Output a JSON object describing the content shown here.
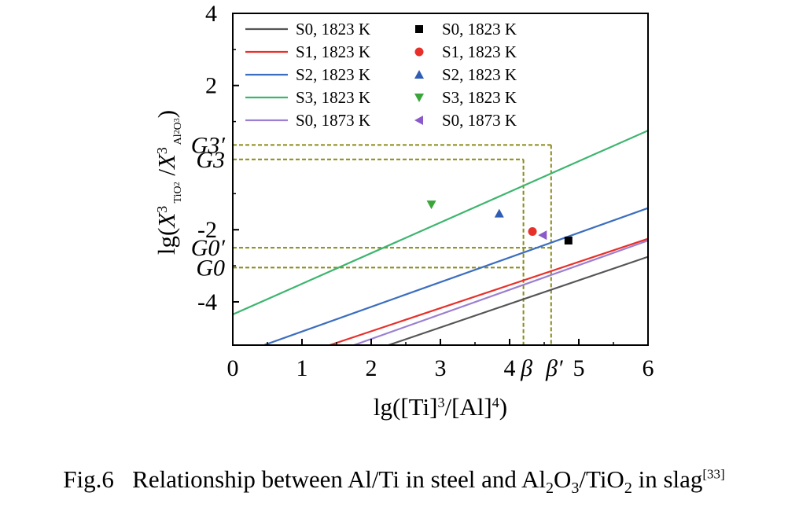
{
  "chart_data": {
    "type": "line",
    "title": "",
    "xlabel": "lg([Ti]^3/[Al]^4)",
    "ylabel": "lg(X^3 TiO2 / X^3 Al2O3)",
    "xlim": [
      0,
      6
    ],
    "ylim": [
      -5.2,
      4
    ],
    "x_ticks": [
      "0",
      "1",
      "2",
      "3",
      "4",
      "5",
      "6"
    ],
    "y_ticks": [
      "4",
      "2",
      "-2",
      "-4"
    ],
    "special_x_ticks": [
      {
        "label": "β",
        "value": 4.2
      },
      {
        "label": "β′",
        "value": 4.6
      }
    ],
    "special_y_ticks": [
      {
        "label": "G3′",
        "value": 0.35
      },
      {
        "label": "G3",
        "value": -0.05
      },
      {
        "label": "G0′",
        "value": -2.5
      },
      {
        "label": "G0",
        "value": -3.05
      }
    ],
    "grid": false,
    "legend_position": "top-left",
    "series": [
      {
        "name": "S0, 1823 K",
        "color": "#555555",
        "x": [
          2.25,
          6.0
        ],
        "y": [
          -5.2,
          -2.75
        ]
      },
      {
        "name": "S1, 1823 K",
        "color": "#e8302a",
        "x": [
          1.4,
          6.0
        ],
        "y": [
          -5.2,
          -2.25
        ]
      },
      {
        "name": "S2, 1823 K",
        "color": "#3c6ebf",
        "x": [
          0.45,
          6.0
        ],
        "y": [
          -5.2,
          -1.4
        ]
      },
      {
        "name": "S3, 1823 K",
        "color": "#3db56f",
        "x": [
          0.0,
          6.0
        ],
        "y": [
          -4.35,
          0.75
        ]
      },
      {
        "name": "S0, 1873 K",
        "color": "#9b7fd1",
        "x": [
          1.75,
          6.0
        ],
        "y": [
          -5.2,
          -2.3
        ]
      }
    ],
    "points": [
      {
        "name": "S0, 1823 K",
        "marker": "square",
        "color": "#000000",
        "x": 4.85,
        "y": -2.3
      },
      {
        "name": "S1, 1823 K",
        "marker": "circle",
        "color": "#e8302a",
        "x": 4.33,
        "y": -2.05
      },
      {
        "name": "S2, 1823 K",
        "marker": "triangle-up",
        "color": "#2f5db5",
        "x": 3.85,
        "y": -1.55
      },
      {
        "name": "S3, 1823 K",
        "marker": "triangle-down",
        "color": "#3aa63a",
        "x": 2.87,
        "y": -1.3
      },
      {
        "name": "S0, 1873 K",
        "marker": "triangle-left",
        "color": "#8a5ac8",
        "x": 4.48,
        "y": -2.15
      }
    ],
    "guide_color": "#8a8a1a"
  },
  "caption": {
    "prefix": "Fig.6",
    "text": "Relationship between Al/Ti in steel and Al",
    "sub1": "2",
    "o": "O",
    "sub2": "3",
    "ti": "/TiO",
    "sub3": "2",
    "tail": " in slag",
    "ref": "[33]"
  }
}
